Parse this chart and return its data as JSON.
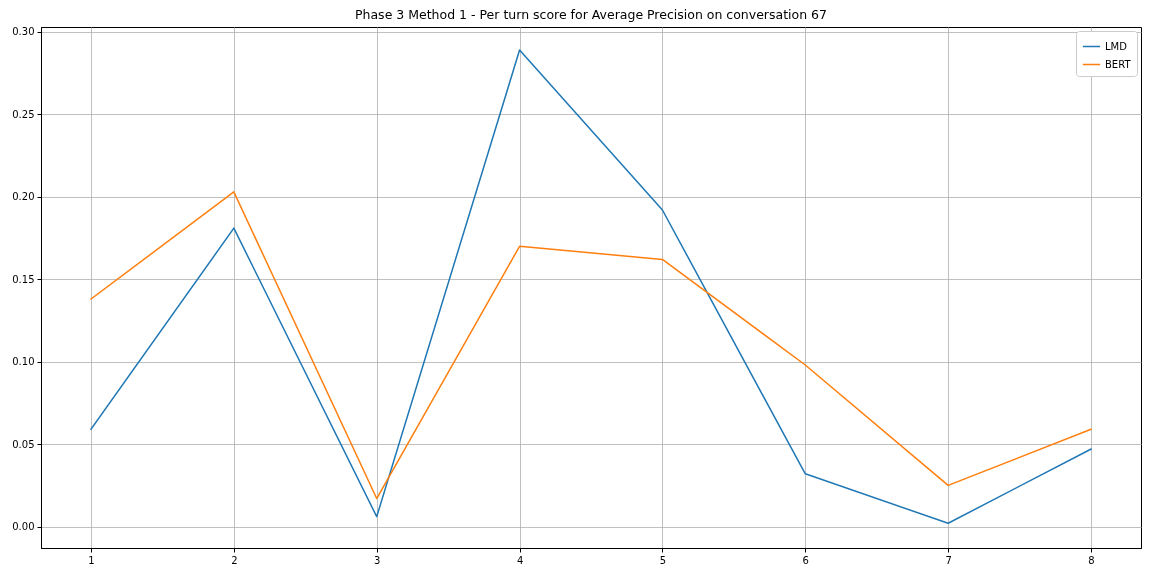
{
  "chart_data": {
    "type": "line",
    "title": "Phase 3 Method 1 - Per turn score for Average Precision on conversation 67",
    "x": [
      1,
      2,
      3,
      4,
      5,
      6,
      7,
      8
    ],
    "series": [
      {
        "name": "LMD",
        "color": "#1f77b4",
        "values": [
          0.059,
          0.181,
          0.006,
          0.289,
          0.192,
          0.032,
          0.002,
          0.047
        ]
      },
      {
        "name": "BERT",
        "color": "#ff7f0e",
        "values": [
          0.138,
          0.203,
          0.017,
          0.17,
          0.162,
          0.098,
          0.025,
          0.059
        ]
      }
    ],
    "xlim": [
      0.65,
      8.35
    ],
    "xticks": [
      1,
      2,
      3,
      4,
      5,
      6,
      7,
      8
    ],
    "ylim": [
      -0.013,
      0.303
    ],
    "yticks": [
      {
        "value": 0,
        "label": "0.00"
      },
      0.05,
      {
        "value": 0.1,
        "label": "0.10"
      },
      0.15,
      {
        "value": 0.2,
        "label": "0.20"
      },
      0.25,
      {
        "value": 0.3,
        "label": "0.30"
      }
    ],
    "grid": true,
    "legend": "top right"
  }
}
